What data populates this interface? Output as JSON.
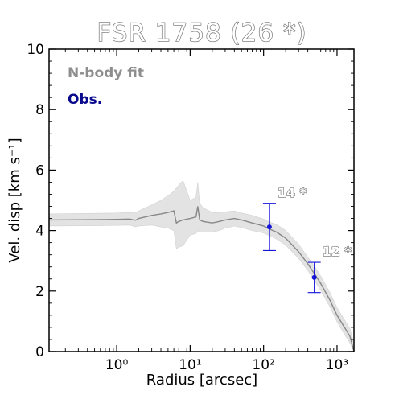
{
  "chart_data": {
    "type": "line",
    "title": "FSR 1758 (26 *)",
    "xlabel": "Radius [arcsec]",
    "ylabel": "Vel. disp [km s⁻¹]",
    "xscale": "log",
    "xlim": [
      0.12,
      1700
    ],
    "ylim": [
      0,
      10
    ],
    "x_ticks": [
      1,
      10,
      100,
      1000
    ],
    "x_tick_labels": [
      "10⁰",
      "10¹",
      "10²",
      "10³"
    ],
    "y_ticks": [
      0,
      2,
      4,
      6,
      8,
      10
    ],
    "y_tick_labels": [
      "0",
      "2",
      "4",
      "6",
      "8",
      "10"
    ],
    "grid": false,
    "legend_position": "top-left",
    "colors": {
      "model": "#888888",
      "band": "#e3e3e3",
      "obs": "#1515d9",
      "obs_legend": "#0a0a8c"
    },
    "series": [
      {
        "name": "N-body fit",
        "x": [
          0.12,
          0.5,
          1.0,
          1.5,
          1.8,
          2.0,
          3.0,
          4.0,
          5.0,
          6.0,
          6.5,
          7.0,
          8.0,
          10.0,
          12.0,
          12.7,
          13.5,
          15,
          20,
          25,
          30,
          40,
          50,
          70,
          100,
          120,
          150,
          200,
          300,
          400,
          500,
          600,
          800,
          1000,
          1300,
          1500,
          1700
        ],
        "y": [
          4.35,
          4.36,
          4.37,
          4.38,
          4.34,
          4.4,
          4.5,
          4.55,
          4.6,
          4.65,
          4.25,
          4.3,
          4.35,
          4.4,
          4.45,
          4.8,
          4.35,
          4.3,
          4.25,
          4.3,
          4.35,
          4.4,
          4.35,
          4.25,
          4.15,
          4.05,
          3.95,
          3.75,
          3.3,
          2.9,
          2.55,
          2.25,
          1.7,
          1.2,
          0.75,
          0.5,
          0.0
        ],
        "upper": [
          4.55,
          4.57,
          4.58,
          4.6,
          4.58,
          4.65,
          4.85,
          5.0,
          5.15,
          5.3,
          5.4,
          5.5,
          5.65,
          5.0,
          5.1,
          5.6,
          4.9,
          4.75,
          4.6,
          4.6,
          4.62,
          4.65,
          4.58,
          4.5,
          4.38,
          4.28,
          4.2,
          4.0,
          3.55,
          3.12,
          2.8,
          2.5,
          1.95,
          1.45,
          1.0,
          0.75,
          0.25
        ],
        "lower": [
          4.15,
          4.16,
          4.17,
          4.18,
          4.12,
          4.15,
          4.18,
          4.12,
          4.08,
          4.0,
          3.4,
          3.45,
          3.5,
          3.85,
          3.9,
          4.0,
          3.95,
          3.95,
          3.95,
          4.0,
          4.08,
          4.15,
          4.1,
          4.0,
          3.92,
          3.83,
          3.72,
          3.52,
          3.08,
          2.68,
          2.32,
          2.02,
          1.48,
          0.98,
          0.52,
          0.28,
          0.0
        ]
      },
      {
        "name": "Obs.",
        "x": [
          120,
          490
        ],
        "y": [
          4.12,
          2.45
        ],
        "err_low": [
          0.78,
          0.5
        ],
        "err_high": [
          0.78,
          0.5
        ],
        "labels": [
          "14 *",
          "12 *"
        ]
      }
    ]
  }
}
